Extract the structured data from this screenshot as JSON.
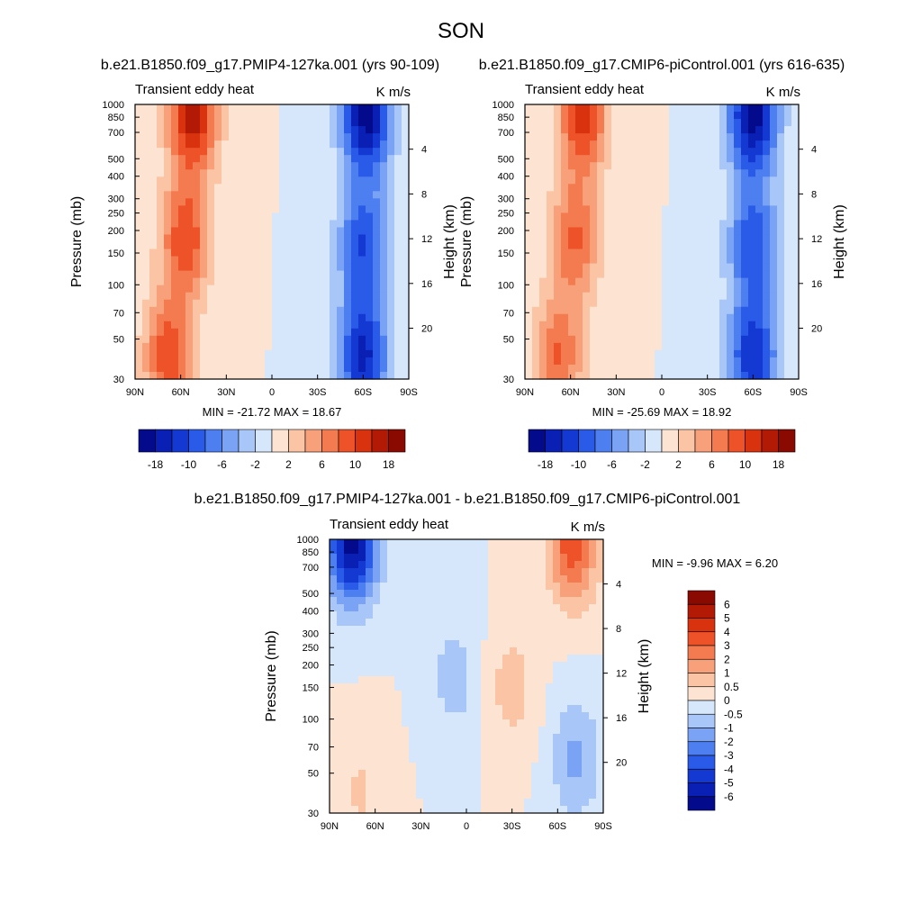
{
  "figure": {
    "title": "SON"
  },
  "chart_data": [
    {
      "type": "contour",
      "panel": "left",
      "title": "b.e21.B1850.f09_g17.PMIP4-127ka.001 (yrs 90-109)",
      "left_label": "Transient eddy heat",
      "right_label": "K m/s",
      "xlabel": "",
      "ylabel": "Pressure (mb)",
      "ylabel_right": "Height (km)",
      "x_ticks": [
        "90N",
        "60N",
        "30N",
        "0",
        "30S",
        "60S",
        "90S"
      ],
      "x_range": [
        90,
        -90
      ],
      "y_ticks": [
        "30",
        "50",
        "70",
        "100",
        "150",
        "200",
        "250",
        "300",
        "400",
        "500",
        "700",
        "850",
        "1000"
      ],
      "y_range": [
        1000,
        30
      ],
      "height_ticks": [
        "20",
        "16",
        "12",
        "8",
        "4"
      ],
      "stats": "MIN = -21.72  MAX =  18.67",
      "min": -21.72,
      "max": 18.67,
      "colorbar": {
        "orientation": "horizontal",
        "labels": [
          "-18",
          "-10",
          "-6",
          "-2",
          "2",
          "6",
          "10",
          "18"
        ],
        "colors": [
          "#040a8c",
          "#0a1fb4",
          "#1438d2",
          "#2a5ae8",
          "#4d7ff0",
          "#7aa3f5",
          "#a8c6f8",
          "#d6e6fb",
          "#fde4d2",
          "#fbc5a5",
          "#f7a07a",
          "#f47a50",
          "#ee5228",
          "#d9320f",
          "#b31a06",
          "#8a0a02"
        ]
      },
      "peaks": [
        {
          "lat": 52,
          "p": 880,
          "value": 18.67
        },
        {
          "lat": 68,
          "p": 40,
          "value": 14
        },
        {
          "lat": 57,
          "p": 180,
          "value": 14
        },
        {
          "lat": -62,
          "p": 880,
          "value": -21.72
        },
        {
          "lat": -60,
          "p": 40,
          "value": -18
        },
        {
          "lat": -60,
          "p": 170,
          "value": -14
        }
      ]
    },
    {
      "type": "contour",
      "panel": "right",
      "title": "b.e21.B1850.f09_g17.CMIP6-piControl.001 (yrs 616-635)",
      "left_label": "Transient eddy heat",
      "right_label": "K m/s",
      "xlabel": "",
      "ylabel": "Pressure (mb)",
      "ylabel_right": "Height (km)",
      "x_ticks": [
        "90N",
        "60N",
        "30N",
        "0",
        "30S",
        "60S",
        "90S"
      ],
      "x_range": [
        90,
        -90
      ],
      "y_ticks": [
        "30",
        "50",
        "70",
        "100",
        "150",
        "200",
        "250",
        "300",
        "400",
        "500",
        "700",
        "850",
        "1000"
      ],
      "y_range": [
        1000,
        30
      ],
      "height_ticks": [
        "20",
        "16",
        "12",
        "8",
        "4"
      ],
      "stats": "MIN = -25.69  MAX =  18.92",
      "min": -25.69,
      "max": 18.92,
      "colorbar": {
        "orientation": "horizontal",
        "labels": [
          "-18",
          "-10",
          "-6",
          "-2",
          "2",
          "6",
          "10",
          "18"
        ],
        "colors": [
          "#040a8c",
          "#0a1fb4",
          "#1438d2",
          "#2a5ae8",
          "#4d7ff0",
          "#7aa3f5",
          "#a8c6f8",
          "#d6e6fb",
          "#fde4d2",
          "#fbc5a5",
          "#f7a07a",
          "#f47a50",
          "#ee5228",
          "#d9320f",
          "#b31a06",
          "#8a0a02"
        ]
      },
      "peaks": [
        {
          "lat": 52,
          "p": 880,
          "value": 18.92
        },
        {
          "lat": 68,
          "p": 40,
          "value": 14
        },
        {
          "lat": 57,
          "p": 180,
          "value": 14
        },
        {
          "lat": -60,
          "p": 880,
          "value": -25.69
        },
        {
          "lat": -60,
          "p": 40,
          "value": -20
        },
        {
          "lat": -60,
          "p": 170,
          "value": -16
        }
      ]
    },
    {
      "type": "contour",
      "panel": "bottom",
      "title": "b.e21.B1850.f09_g17.PMIP4-127ka.001 - b.e21.B1850.f09_g17.CMIP6-piControl.001",
      "left_label": "Transient eddy heat",
      "right_label": "K m/s",
      "xlabel": "",
      "ylabel": "Pressure (mb)",
      "ylabel_right": "Height (km)",
      "x_ticks": [
        "90N",
        "60N",
        "30N",
        "0",
        "30S",
        "60S",
        "90S"
      ],
      "x_range": [
        90,
        -90
      ],
      "y_ticks": [
        "30",
        "50",
        "70",
        "100",
        "150",
        "200",
        "250",
        "300",
        "400",
        "500",
        "700",
        "850",
        "1000"
      ],
      "y_range": [
        1000,
        30
      ],
      "height_ticks": [
        "20",
        "16",
        "12",
        "8",
        "4"
      ],
      "stats": "MIN = -9.96  MAX =   6.20",
      "min": -9.96,
      "max": 6.2,
      "colorbar": {
        "orientation": "vertical",
        "labels": [
          "6",
          "5",
          "4",
          "3",
          "2",
          "1",
          "0.5",
          "0",
          "-0.5",
          "-1",
          "-2",
          "-3",
          "-4",
          "-5",
          "-6"
        ],
        "colors": [
          "#8a0a02",
          "#b31a06",
          "#d9320f",
          "#ee5228",
          "#f47a50",
          "#f7a07a",
          "#fbc5a5",
          "#fde4d2",
          "#d6e6fb",
          "#a8c6f8",
          "#7aa3f5",
          "#4d7ff0",
          "#2a5ae8",
          "#1438d2",
          "#0a1fb4",
          "#040a8c"
        ]
      },
      "peaks": [
        {
          "lat": 70,
          "p": 40,
          "value": 1.5
        },
        {
          "lat": 8,
          "p": 170,
          "value": -2
        },
        {
          "lat": -30,
          "p": 150,
          "value": 2
        },
        {
          "lat": -72,
          "p": 60,
          "value": -3
        },
        {
          "lat": -70,
          "p": 950,
          "value": 6.2
        },
        {
          "lat": 75,
          "p": 960,
          "value": -9.96
        }
      ]
    }
  ]
}
